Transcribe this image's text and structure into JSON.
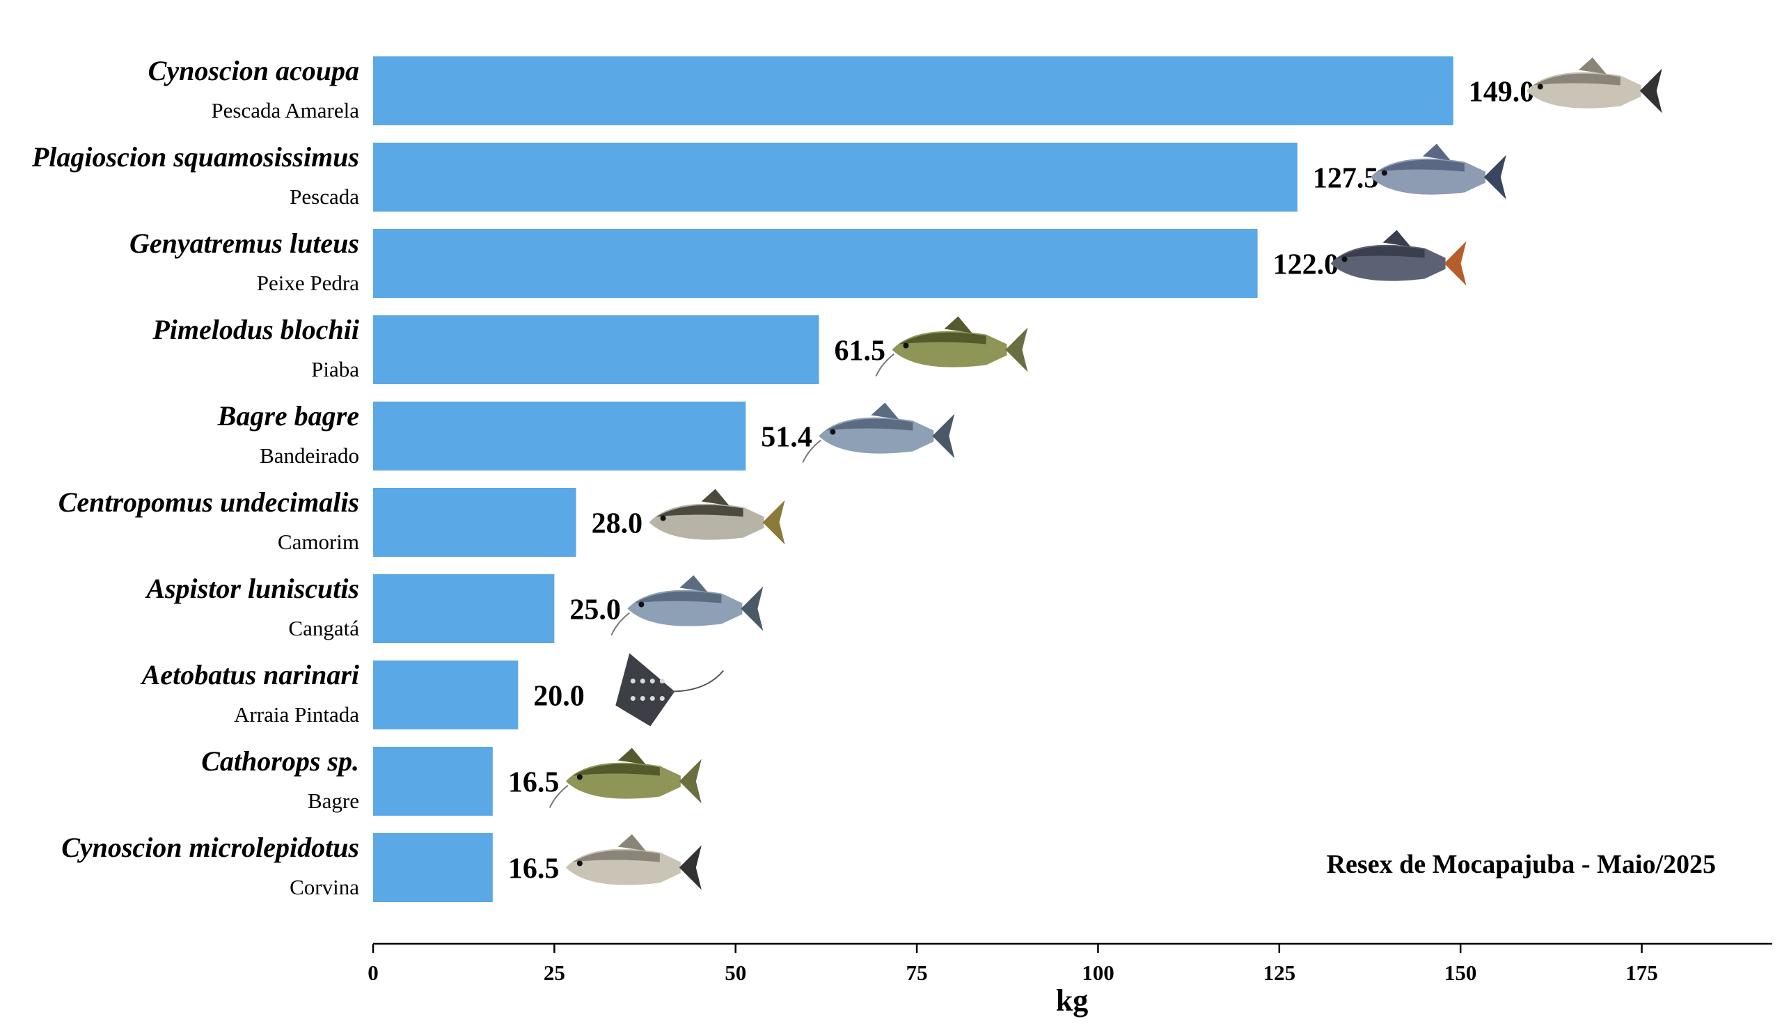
{
  "chart_data": {
    "type": "bar",
    "orientation": "horizontal",
    "categories": [
      {
        "scientific": "Cynoscion acoupa",
        "common": "Pescada Amarela"
      },
      {
        "scientific": "Plagioscion squamosissimus",
        "common": "Pescada"
      },
      {
        "scientific": "Genyatremus luteus",
        "common": "Peixe Pedra"
      },
      {
        "scientific": "Pimelodus blochii",
        "common": "Piaba"
      },
      {
        "scientific": "Bagre bagre",
        "common": "Bandeirado"
      },
      {
        "scientific": "Centropomus undecimalis",
        "common": "Camorim"
      },
      {
        "scientific": "Aspistor luniscutis",
        "common": "Cangatá"
      },
      {
        "scientific": "Aetobatus narinari",
        "common": "Arraia Pintada"
      },
      {
        "scientific": "Cathorops sp.",
        "common": "Bagre"
      },
      {
        "scientific": "Cynoscion microlepidotus",
        "common": "Corvina"
      }
    ],
    "values": [
      149.0,
      127.5,
      122.0,
      61.5,
      51.4,
      28.0,
      25.0,
      20.0,
      16.5,
      16.5
    ],
    "value_labels": [
      "149.0",
      "127.5",
      "122.0",
      "61.5",
      "51.4",
      "28.0",
      "25.0",
      "20.0",
      "16.5",
      "16.5"
    ],
    "icons": [
      "weakfish-icon",
      "croaker-icon",
      "grunt-icon",
      "catfish-icon",
      "sea-catfish-icon",
      "snook-icon",
      "sea-catfish-icon",
      "eagle-ray-icon",
      "catfish-icon",
      "weakfish-icon"
    ],
    "bar_color": "#5aa8e6",
    "xlabel": "kg",
    "xlim": [
      0,
      193
    ],
    "xticks": [
      0,
      25,
      50,
      75,
      100,
      125,
      150,
      175
    ],
    "annotation": "Resex de Mocapajuba - Maio/2025",
    "grid": false
  }
}
